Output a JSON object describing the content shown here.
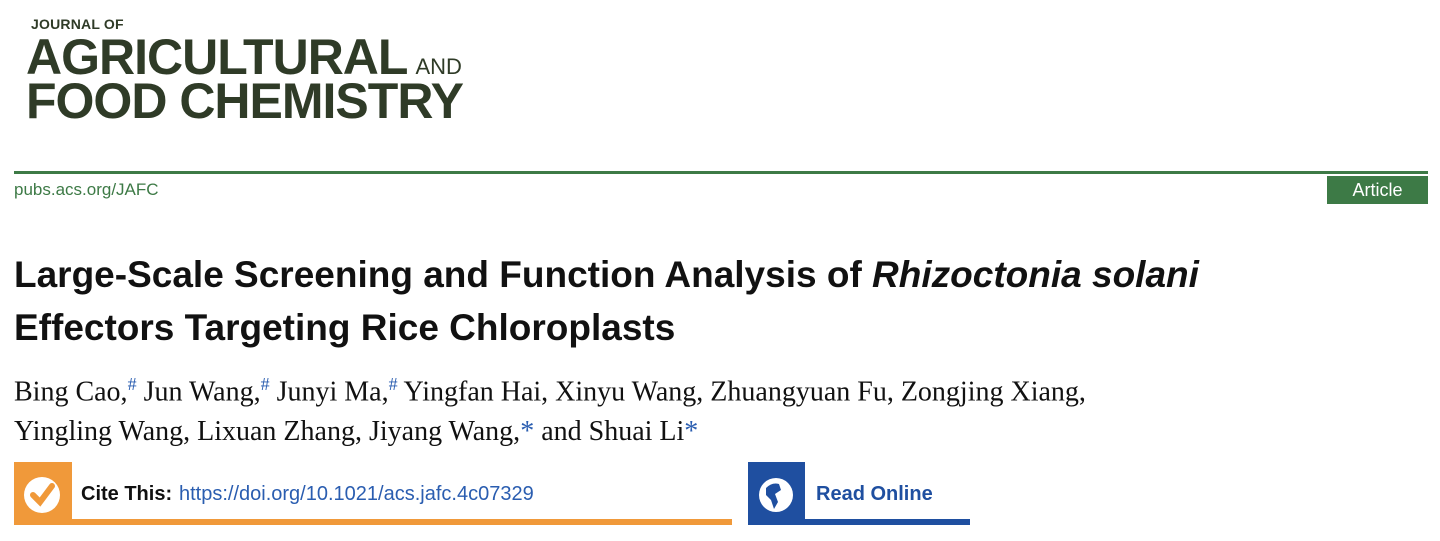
{
  "journal": {
    "line1": "JOURNAL OF",
    "line2": "AGRICULTURAL",
    "and": "AND",
    "line3": "FOOD CHEMISTRY"
  },
  "header": {
    "site": "pubs.acs.org/JAFC",
    "badge": "Article"
  },
  "article": {
    "title_plain": "Large-Scale Screening and Function Analysis of ",
    "title_italic": "Rhizoctonia solani",
    "title_rest": "Effectors Targeting Rice Chloroplasts",
    "authors": [
      {
        "name": "Bing Cao,",
        "mark": "#"
      },
      {
        "name": "Jun Wang,",
        "mark": "#"
      },
      {
        "name": "Junyi Ma,",
        "mark": "#"
      },
      {
        "name": "Yingfan Hai, Xinyu Wang, Zhuangyuan Fu, Zongjing Xiang,"
      },
      {
        "name": "Yingling Wang, Lixuan Zhang, Jiyang Wang,",
        "mark": "*"
      },
      {
        "name": "and Shuai Li",
        "mark": "*"
      }
    ]
  },
  "cite": {
    "label": "Cite This:",
    "link": "https://doi.org/10.1021/acs.jafc.4c07329",
    "icon": "checkmark-icon",
    "color": "#f0993a"
  },
  "read": {
    "label": "Read Online",
    "icon": "globe-icon",
    "color": "#1f4fa0"
  },
  "colors": {
    "brand": "#3d7a46",
    "link": "#2a5db0"
  }
}
